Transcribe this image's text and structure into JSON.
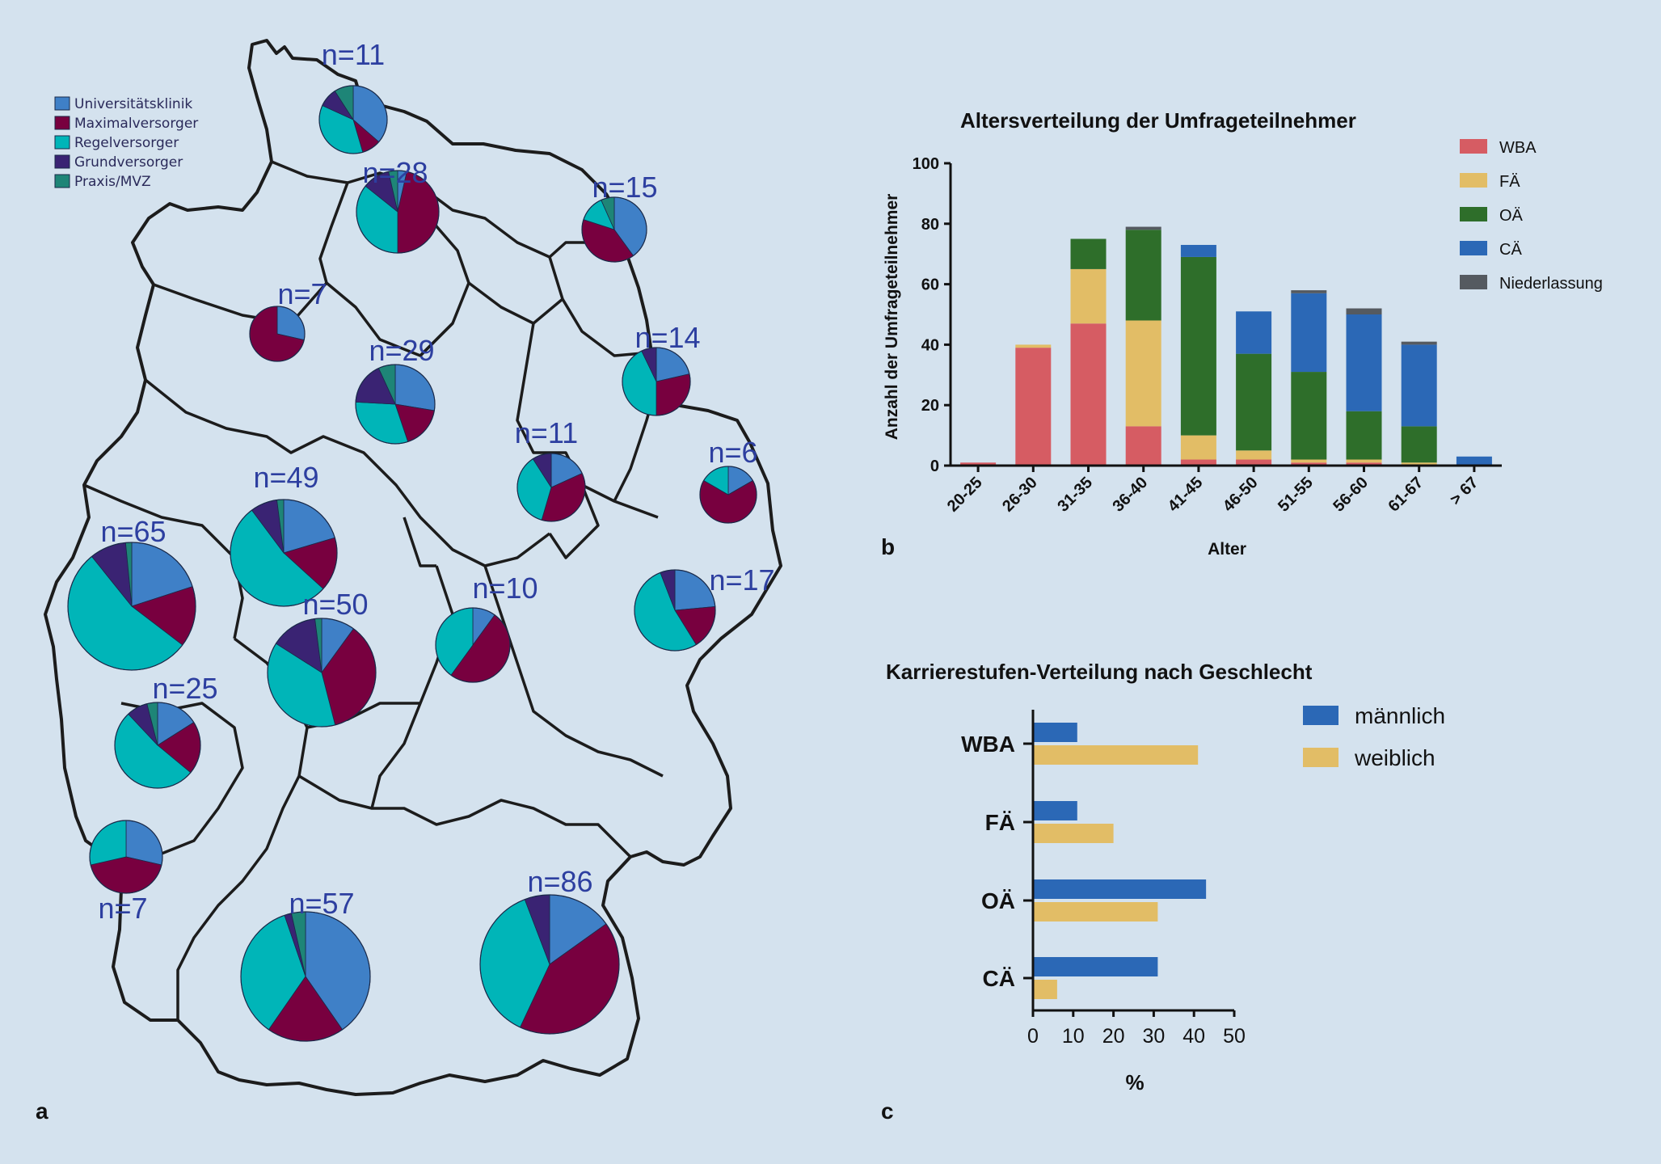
{
  "colors": {
    "background": "#d4e2ee",
    "Universitätsklinik": "#3f80c7",
    "Maximalversorger": "#78003f",
    "Regelversorger": "#00b5b8",
    "Grundversorger": "#3a2373",
    "Praxis/MVZ": "#1e8577",
    "WBA": "#d65c63",
    "FÄ": "#e2bd66",
    "OÄ": "#2e6e2a",
    "CÄ": "#2b68b6",
    "Niederlassung": "#555a60",
    "männlich": "#2b68b6",
    "weiblich": "#e2bd66"
  },
  "panels": {
    "a": "a",
    "b": "b",
    "c": "c"
  },
  "map_legend": [
    "Universitätsklinik",
    "Maximalversorger",
    "Regelversorger",
    "Grundversorger",
    "Praxis/MVZ"
  ],
  "chart_data": [
    {
      "type": "pie",
      "categories": [
        "Universitätsklinik",
        "Maximalversorger",
        "Regelversorger",
        "Grundversorger",
        "Praxis/MVZ"
      ],
      "pies": [
        {
          "label": "n=11",
          "n": 11,
          "values": [
            4,
            1,
            4,
            1,
            1
          ]
        },
        {
          "label": "n=28",
          "n": 28,
          "values": [
            1,
            13,
            10,
            3,
            1
          ]
        },
        {
          "label": "n=15",
          "n": 15,
          "values": [
            6,
            6,
            2,
            0,
            1
          ]
        },
        {
          "label": "n=7",
          "n": 7,
          "values": [
            2,
            5,
            0,
            0,
            0
          ]
        },
        {
          "label": "n=29",
          "n": 29,
          "values": [
            8,
            5,
            9,
            5,
            2
          ]
        },
        {
          "label": "n=14",
          "n": 14,
          "values": [
            3,
            4,
            6,
            1,
            0
          ]
        },
        {
          "label": "n=11",
          "n": 11,
          "values": [
            2,
            4,
            4,
            1,
            0
          ]
        },
        {
          "label": "n=6",
          "n": 6,
          "values": [
            1,
            4,
            1,
            0,
            0
          ]
        },
        {
          "label": "n=49",
          "n": 49,
          "values": [
            10,
            8,
            26,
            4,
            1
          ]
        },
        {
          "label": "n=65",
          "n": 65,
          "values": [
            13,
            10,
            35,
            6,
            1
          ]
        },
        {
          "label": "n=50",
          "n": 50,
          "values": [
            5,
            18,
            19,
            7,
            1
          ]
        },
        {
          "label": "n=10",
          "n": 10,
          "values": [
            1,
            5,
            4,
            0,
            0
          ]
        },
        {
          "label": "n=17",
          "n": 17,
          "values": [
            4,
            3,
            9,
            1,
            0
          ]
        },
        {
          "label": "n=25",
          "n": 25,
          "values": [
            4,
            5,
            13,
            2,
            1
          ]
        },
        {
          "label": "n=7",
          "n": 7,
          "values": [
            2,
            3,
            2,
            0,
            0
          ]
        },
        {
          "label": "n=57",
          "n": 57,
          "values": [
            23,
            11,
            20,
            1,
            2
          ]
        },
        {
          "label": "n=86",
          "n": 86,
          "values": [
            13,
            36,
            32,
            5,
            0
          ]
        }
      ]
    },
    {
      "type": "bar",
      "stacked": true,
      "title": "Altersverteilung der Umfrageteilnehmer",
      "xlabel": "Alter",
      "ylabel": "Anzahl der Umfrageteilnehmer",
      "ylim": [
        0,
        100
      ],
      "yticks": [
        0,
        20,
        40,
        60,
        80,
        100
      ],
      "categories": [
        "20-25",
        "26-30",
        "31-35",
        "36-40",
        "41-45",
        "46-50",
        "51-55",
        "56-60",
        "61-67",
        "> 67"
      ],
      "series": [
        {
          "name": "WBA",
          "values": [
            1,
            39,
            47,
            13,
            2,
            2,
            1,
            1,
            0,
            0
          ]
        },
        {
          "name": "FÄ",
          "values": [
            0,
            1,
            18,
            35,
            8,
            3,
            1,
            1,
            1,
            0
          ]
        },
        {
          "name": "OÄ",
          "values": [
            0,
            0,
            10,
            30,
            59,
            32,
            29,
            16,
            12,
            0
          ]
        },
        {
          "name": "CÄ",
          "values": [
            0,
            0,
            0,
            0,
            4,
            14,
            26,
            32,
            27,
            3
          ]
        },
        {
          "name": "Niederlassung",
          "values": [
            0,
            0,
            0,
            1,
            0,
            0,
            1,
            2,
            1,
            0
          ]
        }
      ],
      "legend": "top-right"
    },
    {
      "type": "bar",
      "orientation": "horizontal",
      "title": "Karrierestufen-Verteilung nach Geschlecht",
      "xlabel": "%",
      "xlim": [
        0,
        50
      ],
      "xticks": [
        0,
        10,
        20,
        30,
        40,
        50
      ],
      "categories": [
        "WBA",
        "FÄ",
        "OÄ",
        "CÄ"
      ],
      "series": [
        {
          "name": "männlich",
          "values": [
            11,
            11,
            43,
            31
          ]
        },
        {
          "name": "weiblich",
          "values": [
            41,
            20,
            31,
            6
          ]
        }
      ],
      "legend": "top-right"
    }
  ]
}
